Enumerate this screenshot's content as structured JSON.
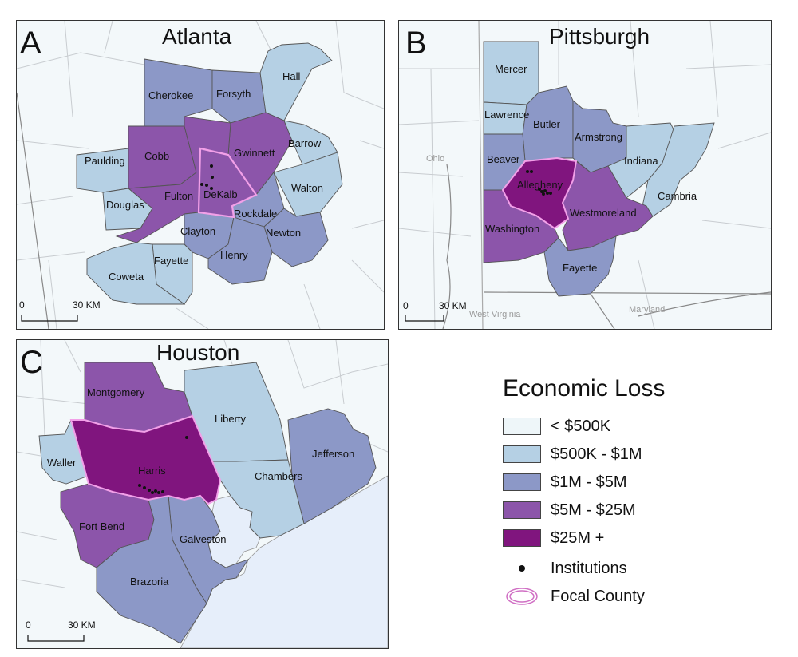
{
  "colors": {
    "lt500k": "#eef6f9",
    "500k_1m": "#b5d0e4",
    "1m_5m": "#8c98c7",
    "5m_25m": "#8c55aa",
    "25m_plus": "#80157e",
    "focal": "#f2a0e8",
    "water": "#e6eefa"
  },
  "legend": {
    "title": "Economic Loss",
    "classes": [
      {
        "label": "< $500K",
        "color": "#eef6f9"
      },
      {
        "label": "$500K - $1M",
        "color": "#b5d0e4"
      },
      {
        "label": "$1M - $5M",
        "color": "#8c98c7"
      },
      {
        "label": "$5M - $25M",
        "color": "#8c55aa"
      },
      {
        "label": "$25M +",
        "color": "#80157e"
      }
    ],
    "institutions_label": "Institutions",
    "focal_label": "Focal County"
  },
  "panels": {
    "atlanta": {
      "letter": "A",
      "title": "Atlanta",
      "scale": {
        "zero": "0",
        "distance": "30 KM"
      },
      "counties": [
        {
          "name": "Cherokee",
          "class": "1m_5m"
        },
        {
          "name": "Forsyth",
          "class": "1m_5m"
        },
        {
          "name": "Hall",
          "class": "500k_1m"
        },
        {
          "name": "Paulding",
          "class": "500k_1m"
        },
        {
          "name": "Cobb",
          "class": "5m_25m"
        },
        {
          "name": "Gwinnett",
          "class": "5m_25m"
        },
        {
          "name": "Barrow",
          "class": "500k_1m"
        },
        {
          "name": "Douglas",
          "class": "500k_1m"
        },
        {
          "name": "Fulton",
          "class": "5m_25m"
        },
        {
          "name": "DeKalb",
          "class": "5m_25m",
          "focal": true
        },
        {
          "name": "Walton",
          "class": "500k_1m"
        },
        {
          "name": "Rockdale",
          "class": "1m_5m"
        },
        {
          "name": "Clayton",
          "class": "1m_5m"
        },
        {
          "name": "Newton",
          "class": "1m_5m"
        },
        {
          "name": "Fayette",
          "class": "500k_1m"
        },
        {
          "name": "Henry",
          "class": "1m_5m"
        },
        {
          "name": "Coweta",
          "class": "500k_1m"
        }
      ]
    },
    "pittsburgh": {
      "letter": "B",
      "title": "Pittsburgh",
      "scale": {
        "zero": "0",
        "distance": "30 KM"
      },
      "context_labels": [
        "Ohio",
        "West Virginia",
        "Maryland"
      ],
      "counties": [
        {
          "name": "Mercer",
          "class": "500k_1m"
        },
        {
          "name": "Lawrence",
          "class": "500k_1m"
        },
        {
          "name": "Butler",
          "class": "1m_5m"
        },
        {
          "name": "Armstrong",
          "class": "1m_5m"
        },
        {
          "name": "Beaver",
          "class": "1m_5m"
        },
        {
          "name": "Indiana",
          "class": "500k_1m"
        },
        {
          "name": "Allegheny",
          "class": "25m_plus",
          "focal": true
        },
        {
          "name": "Cambria",
          "class": "500k_1m"
        },
        {
          "name": "Westmoreland",
          "class": "5m_25m"
        },
        {
          "name": "Washington",
          "class": "5m_25m"
        },
        {
          "name": "Fayette",
          "class": "1m_5m"
        }
      ]
    },
    "houston": {
      "letter": "C",
      "title": "Houston",
      "scale": {
        "zero": "0",
        "distance": "30 KM"
      },
      "counties": [
        {
          "name": "Montgomery",
          "class": "5m_25m"
        },
        {
          "name": "Liberty",
          "class": "500k_1m"
        },
        {
          "name": "Jefferson",
          "class": "1m_5m"
        },
        {
          "name": "Waller",
          "class": "500k_1m"
        },
        {
          "name": "Harris",
          "class": "25m_plus",
          "focal": true
        },
        {
          "name": "Chambers",
          "class": "500k_1m"
        },
        {
          "name": "Fort Bend",
          "class": "5m_25m"
        },
        {
          "name": "Galveston",
          "class": "1m_5m"
        },
        {
          "name": "Brazoria",
          "class": "1m_5m"
        }
      ]
    }
  }
}
